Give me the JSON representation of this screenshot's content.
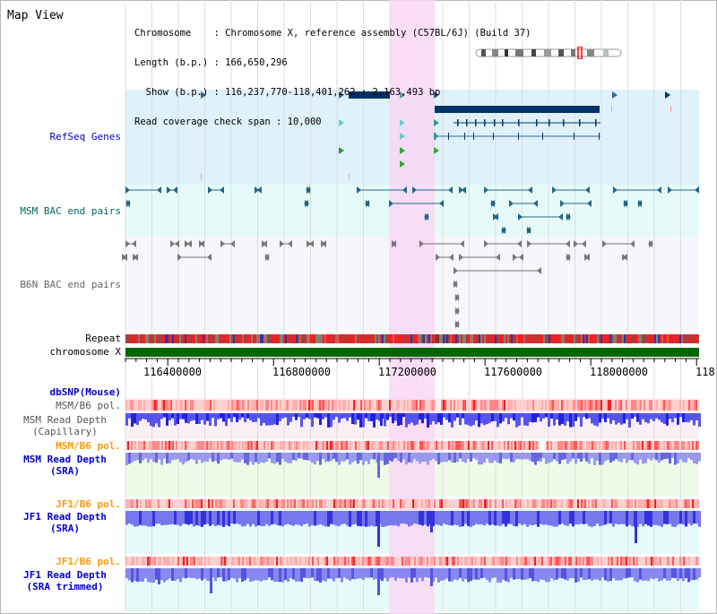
{
  "title": "Map View",
  "info": {
    "line1": "Chromosome    : Chromosome X, reference assembly (C57BL/6J) (Build 37)",
    "line2": "Length (b.p.) : 166,650,296",
    "line3": "  Show (b.p.) : 116,237,770-118,401,262 : 2,163,493 bp",
    "line4": "Read coverage check span : 10,000"
  },
  "tracks": {
    "refseq": "RefSeq Genes",
    "msm_bac": "MSM BAC end pairs",
    "b6n_bac": "B6N BAC end pairs",
    "repeat": "Repeat",
    "chromosome": "chromosome X",
    "dbsnp": "dbSNP(Mouse)",
    "msm_pol_1": "MSM/B6 pol.",
    "msm_depth_cap": "MSM Read Depth\n(Capillary)",
    "msm_pol_2": "MSM/B6 pol.",
    "msm_depth_sra": "MSM Read Depth\n(SRA)",
    "jf1_pol_1": "JF1/B6 pol.",
    "jf1_depth_sra": "JF1 Read Depth\n(SRA)",
    "jf1_pol_2": "JF1/B6 pol.",
    "jf1_depth_trim": "JF1 Read Depth\n(SRA trimmed)"
  },
  "axis_ticks": [
    "116400000",
    "116800000",
    "117200000",
    "117600000",
    "118000000",
    "118"
  ],
  "colors": {
    "highlight": "#f8d8f4",
    "refseq_bg": "#dff1fb",
    "msm_bg": "#e6fbf9",
    "b6n_bg": "#f6f6fb",
    "gene": "#003366",
    "chromosome": "#006600"
  }
}
